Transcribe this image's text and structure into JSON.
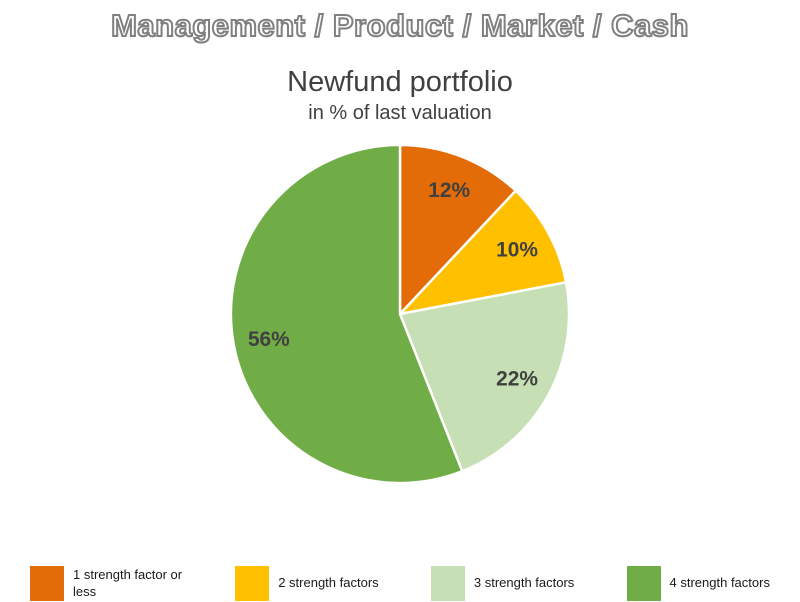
{
  "header": {
    "title": "Management / Product / Market / Cash"
  },
  "chart_data": {
    "type": "pie",
    "title": "Newfund portfolio",
    "subtitle": "in % of last valuation",
    "start_angle_deg": 0,
    "direction": "clockwise",
    "legend_position": "bottom",
    "segments": [
      {
        "label": "1 strength factor or less",
        "value": 12,
        "data_label": "12%",
        "color": "#E36C09"
      },
      {
        "label": "2 strength factors",
        "value": 10,
        "data_label": "10%",
        "color": "#FFC000"
      },
      {
        "label": "3 strength factors",
        "value": 22,
        "data_label": "22%",
        "color": "#C7DFB5"
      },
      {
        "label": "4 strength factors",
        "value": 56,
        "data_label": "56%",
        "color": "#70AD47"
      }
    ]
  }
}
